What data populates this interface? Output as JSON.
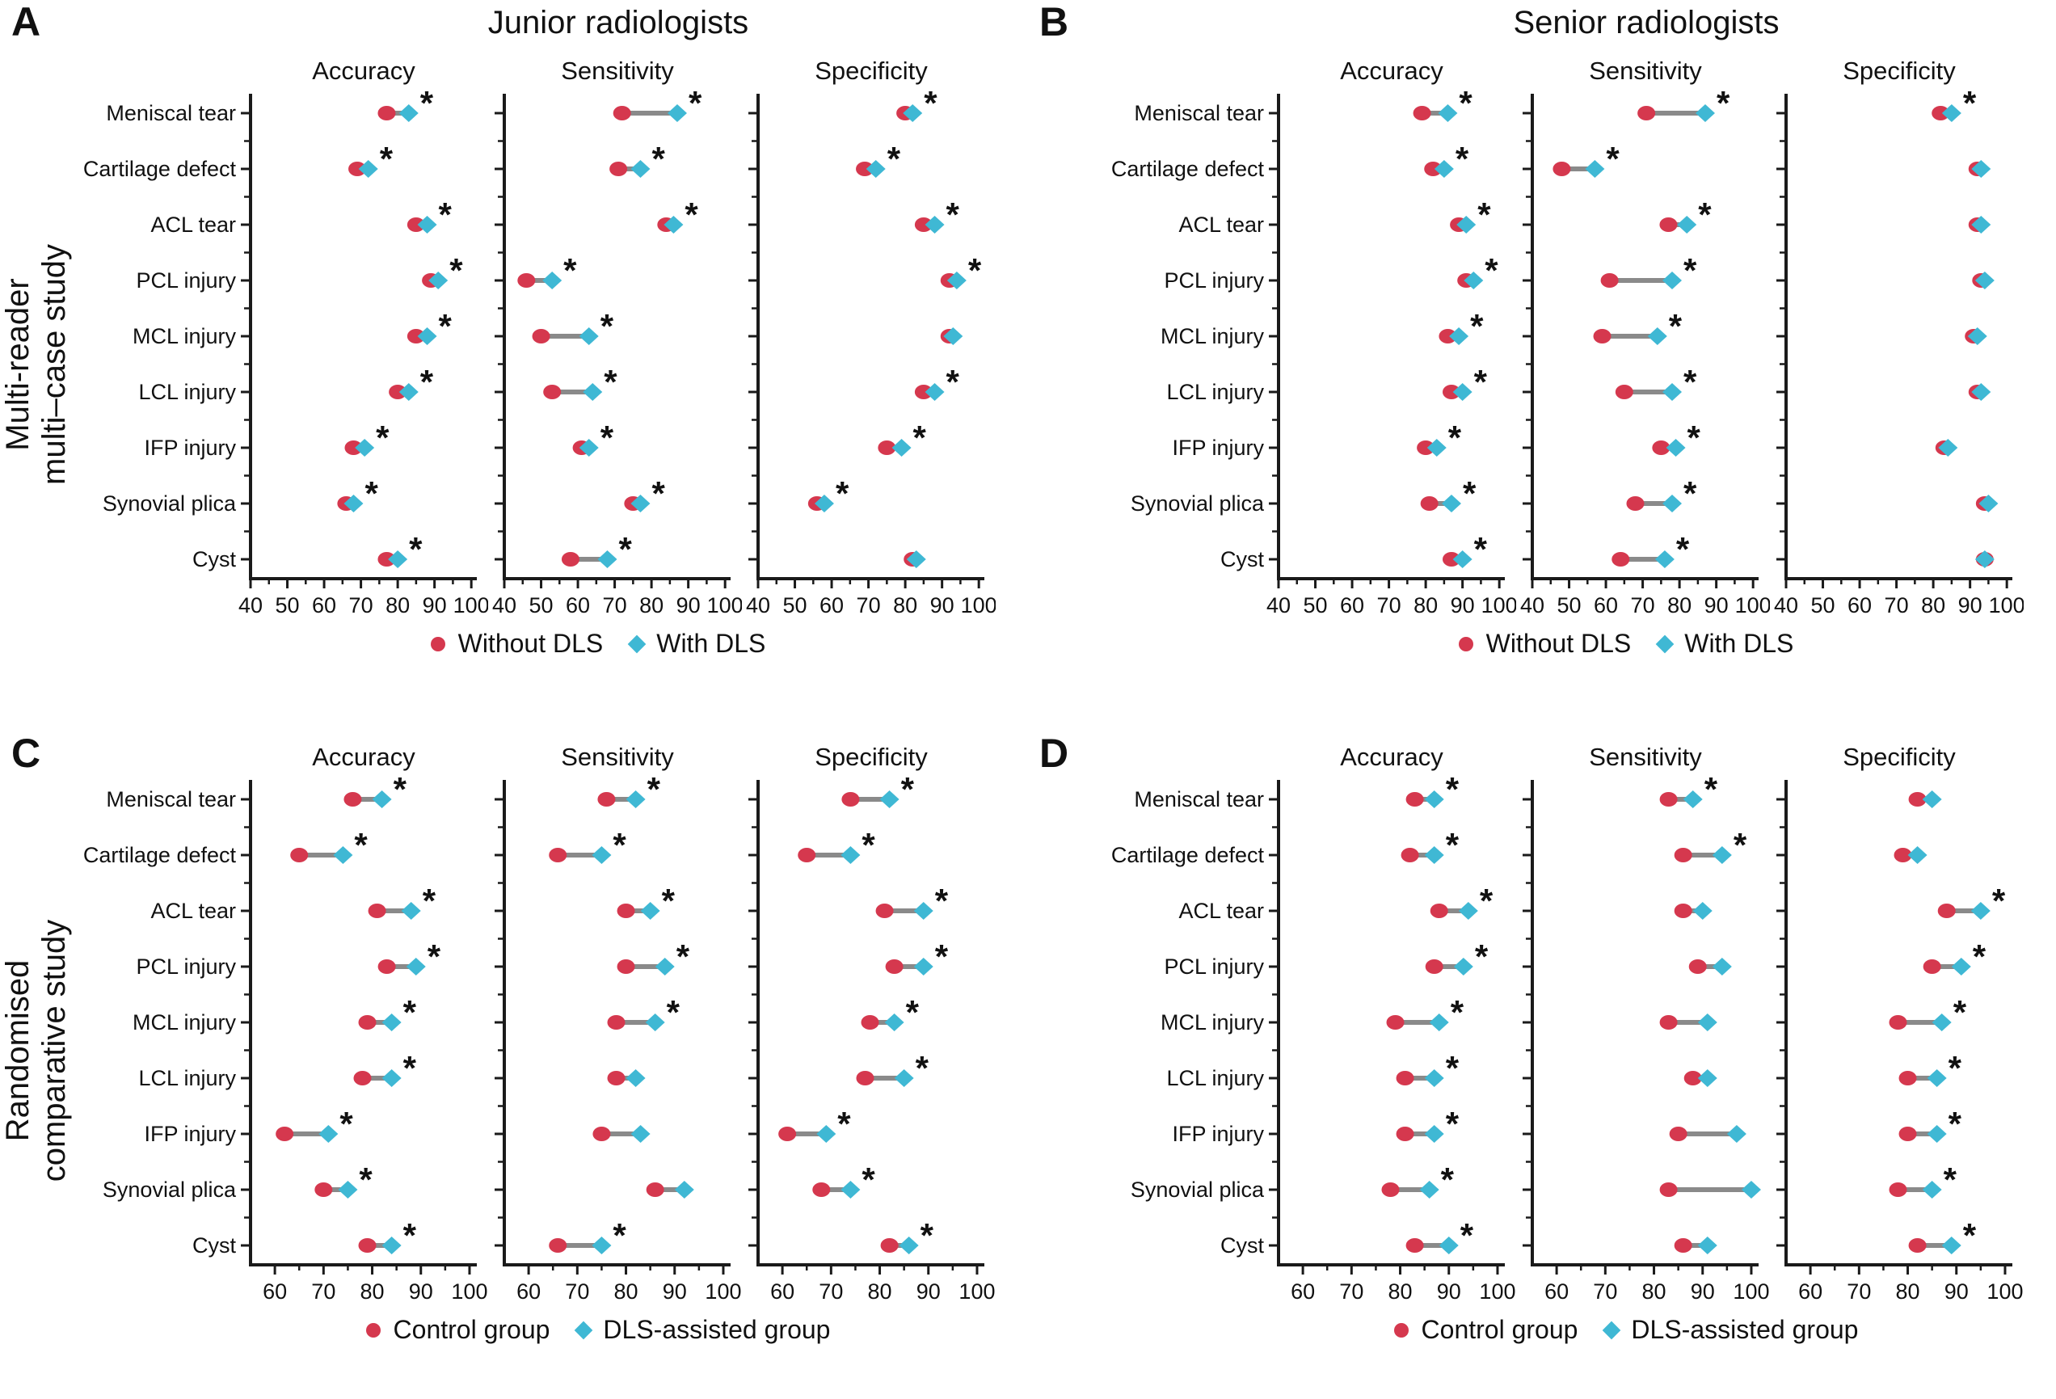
{
  "figure": {
    "colors": {
      "red": "#d5384e",
      "blue": "#3fb8d4",
      "connector": "#8a8a8a",
      "axis": "#1a1a1a",
      "text": "#111111"
    },
    "sig_marker": "*"
  },
  "chart_data": {
    "type": "dumbbell",
    "categories": [
      "Meniscal tear",
      "Cartilage defect",
      "ACL tear",
      "PCL injury",
      "MCL injury",
      "LCL injury",
      "IFP injury",
      "Synovial plica",
      "Cyst"
    ],
    "metrics": [
      "Accuracy",
      "Sensitivity",
      "Specificity"
    ],
    "panels": [
      {
        "letter": "A",
        "title": "Junior radiologists",
        "row_label": [
          "Multi-reader",
          "multi–case study"
        ],
        "legend": [
          {
            "marker": "circle",
            "label": "Without DLS"
          },
          {
            "marker": "diamond",
            "label": "With DLS"
          }
        ],
        "axis": {
          "min": 40,
          "max": 101.5,
          "ticks": [
            40,
            50,
            60,
            70,
            80,
            90,
            100
          ]
        },
        "subplots": [
          {
            "title": "Accuracy",
            "series": [
              {
                "name": "Without DLS",
                "values": [
                  77,
                  69,
                  85,
                  89,
                  85,
                  80,
                  68,
                  66,
                  77
                ]
              },
              {
                "name": "With DLS",
                "values": [
                  83,
                  72,
                  88,
                  91,
                  88,
                  83,
                  71,
                  68,
                  80
                ]
              }
            ],
            "significant": [
              true,
              true,
              true,
              true,
              true,
              true,
              true,
              true,
              true
            ]
          },
          {
            "title": "Sensitivity",
            "series": [
              {
                "name": "Without DLS",
                "values": [
                  72,
                  71,
                  84,
                  46,
                  50,
                  53,
                  61,
                  75,
                  58
                ]
              },
              {
                "name": "With DLS",
                "values": [
                  87,
                  77,
                  86,
                  53,
                  63,
                  64,
                  63,
                  77,
                  68
                ]
              }
            ],
            "significant": [
              true,
              true,
              true,
              true,
              true,
              true,
              true,
              true,
              true
            ]
          },
          {
            "title": "Specificity",
            "series": [
              {
                "name": "Without DLS",
                "values": [
                  80,
                  69,
                  85,
                  92,
                  92,
                  85,
                  75,
                  56,
                  82
                ]
              },
              {
                "name": "With DLS",
                "values": [
                  82,
                  72,
                  88,
                  94,
                  93,
                  88,
                  79,
                  58,
                  83
                ]
              }
            ],
            "significant": [
              true,
              true,
              true,
              true,
              false,
              true,
              true,
              true,
              false
            ]
          }
        ]
      },
      {
        "letter": "B",
        "title": "Senior radiologists",
        "row_label": null,
        "legend": [
          {
            "marker": "circle",
            "label": "Without DLS"
          },
          {
            "marker": "diamond",
            "label": "With DLS"
          }
        ],
        "axis": {
          "min": 40,
          "max": 101.5,
          "ticks": [
            40,
            50,
            60,
            70,
            80,
            90,
            100
          ]
        },
        "subplots": [
          {
            "title": "Accuracy",
            "series": [
              {
                "name": "Without DLS",
                "values": [
                  79,
                  82,
                  89,
                  91,
                  86,
                  87,
                  80,
                  81,
                  87
                ]
              },
              {
                "name": "With DLS",
                "values": [
                  86,
                  85,
                  91,
                  93,
                  89,
                  90,
                  83,
                  87,
                  90
                ]
              }
            ],
            "significant": [
              true,
              true,
              true,
              true,
              true,
              true,
              true,
              true,
              true
            ]
          },
          {
            "title": "Sensitivity",
            "series": [
              {
                "name": "Without DLS",
                "values": [
                  71,
                  48,
                  77,
                  61,
                  59,
                  65,
                  75,
                  68,
                  64
                ]
              },
              {
                "name": "With DLS",
                "values": [
                  87,
                  57,
                  82,
                  78,
                  74,
                  78,
                  79,
                  78,
                  76
                ]
              }
            ],
            "significant": [
              true,
              true,
              true,
              true,
              true,
              true,
              true,
              true,
              true
            ]
          },
          {
            "title": "Specificity",
            "series": [
              {
                "name": "Without DLS",
                "values": [
                  82,
                  92,
                  92,
                  93,
                  91,
                  92,
                  83,
                  94,
                  94
                ]
              },
              {
                "name": "With DLS",
                "values": [
                  85,
                  93,
                  93,
                  94,
                  92,
                  93,
                  84,
                  95,
                  94
                ]
              }
            ],
            "significant": [
              true,
              false,
              false,
              false,
              false,
              false,
              false,
              false,
              false
            ]
          }
        ]
      },
      {
        "letter": "C",
        "title": "",
        "row_label": [
          "Randomised",
          "comparative study"
        ],
        "legend": [
          {
            "marker": "circle",
            "label": "Control group"
          },
          {
            "marker": "diamond",
            "label": "DLS-assisted group"
          }
        ],
        "axis": {
          "min": 55,
          "max": 101.5,
          "ticks": [
            60,
            70,
            80,
            90,
            100
          ]
        },
        "subplots": [
          {
            "title": "Accuracy",
            "series": [
              {
                "name": "Control group",
                "values": [
                  76,
                  65,
                  81,
                  83,
                  79,
                  78,
                  62,
                  70,
                  79
                ]
              },
              {
                "name": "DLS-assisted group",
                "values": [
                  82,
                  74,
                  88,
                  89,
                  84,
                  84,
                  71,
                  75,
                  84
                ]
              }
            ],
            "significant": [
              true,
              true,
              true,
              true,
              true,
              true,
              true,
              true,
              true
            ]
          },
          {
            "title": "Sensitivity",
            "series": [
              {
                "name": "Control group",
                "values": [
                  76,
                  66,
                  80,
                  80,
                  78,
                  78,
                  75,
                  86,
                  66
                ]
              },
              {
                "name": "DLS-assisted group",
                "values": [
                  82,
                  75,
                  85,
                  88,
                  86,
                  82,
                  83,
                  92,
                  75
                ]
              }
            ],
            "significant": [
              true,
              true,
              true,
              true,
              true,
              false,
              false,
              false,
              true
            ]
          },
          {
            "title": "Specificity",
            "series": [
              {
                "name": "Control group",
                "values": [
                  74,
                  65,
                  81,
                  83,
                  78,
                  77,
                  61,
                  68,
                  82
                ]
              },
              {
                "name": "DLS-assisted group",
                "values": [
                  82,
                  74,
                  89,
                  89,
                  83,
                  85,
                  69,
                  74,
                  86
                ]
              }
            ],
            "significant": [
              true,
              true,
              true,
              true,
              true,
              true,
              true,
              true,
              true
            ]
          }
        ]
      },
      {
        "letter": "D",
        "title": "",
        "row_label": null,
        "legend": [
          {
            "marker": "circle",
            "label": "Control group"
          },
          {
            "marker": "diamond",
            "label": "DLS-assisted group"
          }
        ],
        "axis": {
          "min": 55,
          "max": 101.5,
          "ticks": [
            60,
            70,
            80,
            90,
            100
          ]
        },
        "subplots": [
          {
            "title": "Accuracy",
            "series": [
              {
                "name": "Control group",
                "values": [
                  83,
                  82,
                  88,
                  87,
                  79,
                  81,
                  81,
                  78,
                  83
                ]
              },
              {
                "name": "DLS-assisted group",
                "values": [
                  87,
                  87,
                  94,
                  93,
                  88,
                  87,
                  87,
                  86,
                  90
                ]
              }
            ],
            "significant": [
              true,
              true,
              true,
              true,
              true,
              true,
              true,
              true,
              true
            ]
          },
          {
            "title": "Sensitivity",
            "series": [
              {
                "name": "Control group",
                "values": [
                  83,
                  86,
                  86,
                  89,
                  83,
                  88,
                  85,
                  83,
                  86
                ]
              },
              {
                "name": "DLS-assisted group",
                "values": [
                  88,
                  94,
                  90,
                  94,
                  91,
                  91,
                  97,
                  100,
                  91
                ]
              }
            ],
            "significant": [
              true,
              true,
              false,
              false,
              false,
              false,
              false,
              false,
              false
            ]
          },
          {
            "title": "Specificity",
            "series": [
              {
                "name": "Control group",
                "values": [
                  82,
                  79,
                  88,
                  85,
                  78,
                  80,
                  80,
                  78,
                  82
                ]
              },
              {
                "name": "DLS-assisted group",
                "values": [
                  85,
                  82,
                  95,
                  91,
                  87,
                  86,
                  86,
                  85,
                  89
                ]
              }
            ],
            "significant": [
              false,
              false,
              true,
              true,
              true,
              true,
              true,
              true,
              true
            ]
          }
        ]
      }
    ]
  }
}
